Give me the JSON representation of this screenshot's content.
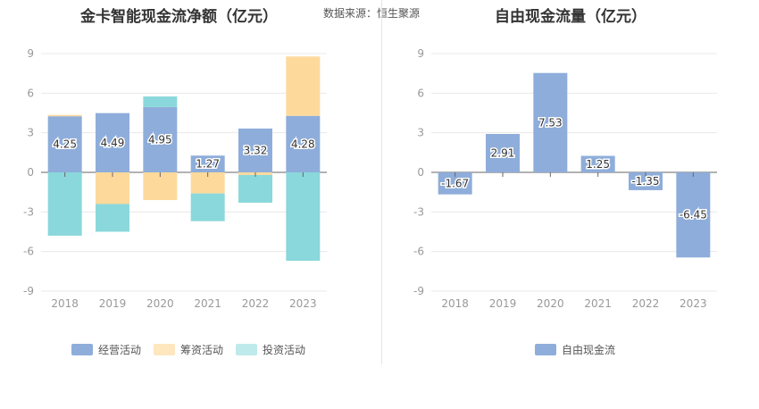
{
  "source_text": "数据来源：恒生聚源",
  "chart_data": [
    {
      "type": "bar",
      "stacked": true,
      "title": "金卡智能现金流净额（亿元）",
      "categories": [
        "2018",
        "2019",
        "2020",
        "2021",
        "2022",
        "2023"
      ],
      "ylim": [
        -9,
        9
      ],
      "yticks": [
        9,
        6,
        3,
        0,
        -3,
        -6,
        -9
      ],
      "grid": true,
      "legend_position": "bottom",
      "series": [
        {
          "name": "经营活动",
          "color": "#8eadda",
          "values": [
            4.25,
            4.49,
            4.95,
            1.27,
            3.32,
            4.28
          ],
          "labels": [
            "4.25",
            "4.49",
            "4.95",
            "1.27",
            "3.32",
            "4.28"
          ]
        },
        {
          "name": "筹资活动",
          "color": "#fdd99c",
          "values": [
            0.1,
            -2.4,
            -2.1,
            -1.6,
            -0.2,
            4.5
          ]
        },
        {
          "name": "投资活动",
          "color": "#8ad8db",
          "values": [
            -4.8,
            -2.1,
            0.8,
            -2.1,
            -2.1,
            -6.7
          ]
        }
      ]
    },
    {
      "type": "bar",
      "title": "自由现金流量（亿元）",
      "categories": [
        "2018",
        "2019",
        "2020",
        "2021",
        "2022",
        "2023"
      ],
      "ylim": [
        -9,
        9
      ],
      "yticks": [
        9,
        6,
        3,
        0,
        -3,
        -6,
        -9
      ],
      "grid": true,
      "legend_position": "bottom",
      "series": [
        {
          "name": "自由现金流",
          "color": "#8eadda",
          "values": [
            -1.67,
            2.91,
            7.53,
            1.25,
            -1.35,
            -6.45
          ],
          "labels": [
            "-1.67",
            "2.91",
            "7.53",
            "1.25",
            "-1.35",
            "-6.45"
          ]
        }
      ]
    }
  ]
}
